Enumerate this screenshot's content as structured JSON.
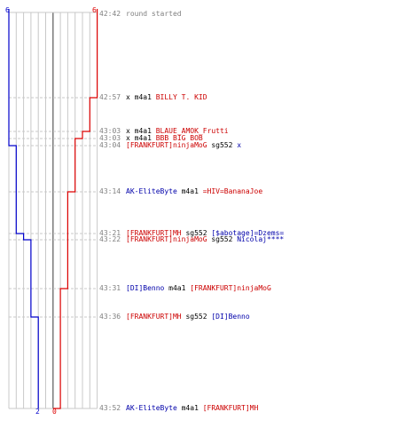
{
  "colors": {
    "team_blue": "#0000cc",
    "team_red": "#dd0000",
    "grid": "#c8c8c8",
    "center": "#707070",
    "time": "#808080"
  },
  "counts": {
    "blue_start": "6",
    "red_start": "6",
    "blue_end": "2",
    "red_end": "0"
  },
  "events": [
    {
      "time": "42:42",
      "parts": [
        {
          "t": "round started",
          "c": "grey"
        }
      ]
    },
    {
      "time": "42:57",
      "parts": [
        {
          "t": "x ",
          "c": ""
        },
        {
          "t": "m4a1 ",
          "c": ""
        },
        {
          "t": "BILLY T. KID",
          "c": "red"
        }
      ]
    },
    {
      "time": "43:03",
      "parts": [
        {
          "t": "x ",
          "c": ""
        },
        {
          "t": "m4a1 ",
          "c": ""
        },
        {
          "t": "BLAUE_AMOK_Frutti",
          "c": "red"
        }
      ]
    },
    {
      "time": "43:03",
      "parts": [
        {
          "t": "x ",
          "c": ""
        },
        {
          "t": "m4a1 ",
          "c": ""
        },
        {
          "t": "BBB BIG BOB",
          "c": "red"
        }
      ]
    },
    {
      "time": "43:04",
      "parts": [
        {
          "t": "[FRANKFURT]ninjaMoG",
          "c": "red"
        },
        {
          "t": " sg552 ",
          "c": ""
        },
        {
          "t": "x",
          "c": "blue"
        }
      ]
    },
    {
      "time": "43:14",
      "parts": [
        {
          "t": "AK-EliteByte",
          "c": "blue"
        },
        {
          "t": " m4a1 ",
          "c": ""
        },
        {
          "t": "=HIV=BananaJoe",
          "c": "red"
        }
      ]
    },
    {
      "time": "43:21",
      "parts": [
        {
          "t": "[FRANKFURT]MH",
          "c": "red"
        },
        {
          "t": " sg552 ",
          "c": ""
        },
        {
          "t": "[$abotage]=Dzems=",
          "c": "blue"
        }
      ]
    },
    {
      "time": "43:22",
      "parts": [
        {
          "t": "[FRANKFURT]ninjaMoG",
          "c": "red"
        },
        {
          "t": " sg552 ",
          "c": ""
        },
        {
          "t": "Nicolaj****",
          "c": "blue"
        }
      ]
    },
    {
      "time": "43:31",
      "parts": [
        {
          "t": "[DI]Benno",
          "c": "blue"
        },
        {
          "t": " m4a1 ",
          "c": ""
        },
        {
          "t": "[FRANKFURT]ninjaMoG",
          "c": "red"
        }
      ]
    },
    {
      "time": "43:36",
      "parts": [
        {
          "t": "[FRANKFURT]MH",
          "c": "red"
        },
        {
          "t": " sg552 ",
          "c": ""
        },
        {
          "t": "[DI]Benno",
          "c": "blue"
        }
      ]
    },
    {
      "time": "43:52",
      "parts": [
        {
          "t": "AK-EliteByte",
          "c": "blue"
        },
        {
          "t": " m4a1 ",
          "c": ""
        },
        {
          "t": "[FRANKFURT]MH",
          "c": "red"
        }
      ]
    }
  ],
  "blue_steps": [
    6,
    6,
    6,
    6,
    5,
    5,
    4,
    3,
    3,
    2,
    2
  ],
  "red_steps": [
    6,
    5,
    4,
    3,
    3,
    2,
    2,
    2,
    1,
    1,
    0
  ]
}
